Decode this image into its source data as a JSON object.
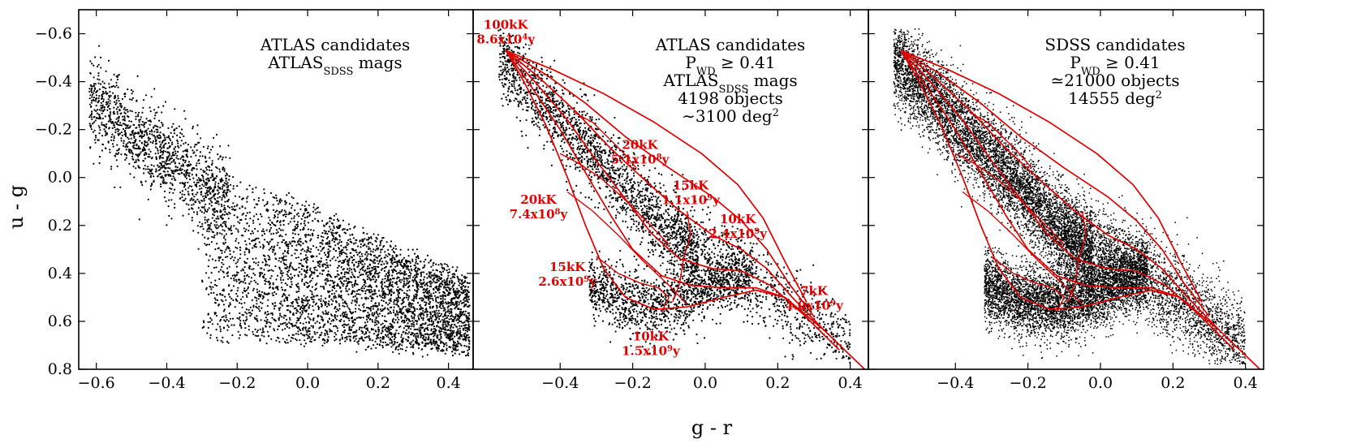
{
  "figure": {
    "xlabel": "g - r",
    "ylabel": "u - g",
    "colors": {
      "points": "#000000",
      "models": "#e00000",
      "background": "#ffffff"
    }
  },
  "chart_data": [
    {
      "type": "scatter",
      "panel": "left",
      "xlim": [
        -0.65,
        0.47
      ],
      "ylim": [
        0.8,
        -0.7
      ],
      "y_inverted": true,
      "x_ticks": [
        -0.6,
        -0.4,
        -0.2,
        0.0,
        0.2,
        0.4
      ],
      "x_tick_labels": [
        "−0.6",
        "−0.4",
        "−0.2",
        "0.0",
        "0.2",
        "0.4"
      ],
      "y_ticks": [
        -0.6,
        -0.4,
        -0.2,
        0.0,
        0.2,
        0.4,
        0.6,
        0.8
      ],
      "y_tick_labels": [
        "−0.6",
        "−0.4",
        "−0.2",
        "0.0",
        "0.2",
        "0.4",
        "0.6",
        "0.8"
      ],
      "text_lines": [
        {
          "text": "ATLAS candidates"
        },
        {
          "text": "ATLAS",
          "sub": "SDSS",
          "after": " mags"
        }
      ],
      "point_count_drawn": 5200,
      "density_regions": [
        {
          "x": [
            -0.62,
            -0.25
          ],
          "y_center": "1.1*x+0.36",
          "spread": 0.09,
          "weight": 0.25
        },
        {
          "x": [
            -0.3,
            0.46
          ],
          "y_upper": "-0.05+0.55*(x+0.3)",
          "y_lower": "0.66+0.08*(x+0.3)",
          "weight": 0.75
        }
      ]
    },
    {
      "type": "scatter",
      "panel": "middle",
      "xlim": [
        -0.64,
        0.45
      ],
      "ylim": [
        0.8,
        -0.7
      ],
      "y_inverted": true,
      "x_ticks": [
        -0.4,
        -0.2,
        0.0,
        0.2,
        0.4
      ],
      "x_tick_labels": [
        "−0.4",
        "−0.2",
        "0.0",
        "0.2",
        "0.4"
      ],
      "text_lines": [
        {
          "text": "ATLAS candidates"
        },
        {
          "text": "P",
          "sub": "WD",
          "after": " ≥ 0.41"
        },
        {
          "text": "ATLAS",
          "sub": "SDSS",
          "after": " mags"
        },
        {
          "text": "4198 objects"
        },
        {
          "text": "∼3100 deg",
          "sup": "2"
        }
      ],
      "annotations": [
        {
          "line1": "100kK",
          "line2": "8.6x10",
          "sup": "4",
          "tail": "y",
          "x": -0.55,
          "y": -0.62
        },
        {
          "line1": "20kK",
          "line2": "5.1x10",
          "sup": "8",
          "tail": "y",
          "x": -0.18,
          "y": -0.12
        },
        {
          "line1": "15kK",
          "line2": "1.1x10",
          "sup": "9",
          "tail": "y",
          "x": -0.04,
          "y": 0.05
        },
        {
          "line1": "20kK",
          "line2": "7.4x10",
          "sup": "8",
          "tail": "y",
          "x": -0.46,
          "y": 0.11
        },
        {
          "line1": "10kK",
          "line2": "2.4x10",
          "sup": "9",
          "tail": "y",
          "x": 0.09,
          "y": 0.19
        },
        {
          "line1": "15kK",
          "line2": "2.6x10",
          "sup": "9",
          "tail": "y",
          "x": -0.38,
          "y": 0.39
        },
        {
          "line1": "7kK",
          "line2": "4.0x10",
          "sup": "9",
          "tail": "y",
          "x": 0.3,
          "y": 0.49
        },
        {
          "line1": "10kK",
          "line2": "1.5x10",
          "sup": "9",
          "tail": "y",
          "x": -0.15,
          "y": 0.68
        }
      ],
      "point_count_drawn": 4198
    },
    {
      "type": "scatter",
      "panel": "right",
      "xlim": [
        -0.64,
        0.45
      ],
      "ylim": [
        0.8,
        -0.7
      ],
      "y_inverted": true,
      "x_ticks": [
        -0.4,
        -0.2,
        0.0,
        0.2,
        0.4
      ],
      "x_tick_labels": [
        "−0.4",
        "−0.2",
        "0.0",
        "0.2",
        "0.4"
      ],
      "text_lines": [
        {
          "text": "SDSS candidates"
        },
        {
          "text": "P",
          "sub": "WD",
          "after": " ≥ 0.41"
        },
        {
          "text": "≃21000 objects"
        },
        {
          "text": "14555 deg",
          "sup": "2"
        }
      ],
      "point_count_drawn": 14000
    }
  ],
  "model_tracks": {
    "cooling_tracks": [
      [
        [
          -0.55,
          -0.53
        ],
        [
          -0.48,
          -0.38
        ],
        [
          -0.4,
          -0.2
        ],
        [
          -0.33,
          -0.02
        ],
        [
          -0.26,
          0.16
        ],
        [
          -0.2,
          0.3
        ],
        [
          -0.12,
          0.41
        ],
        [
          -0.04,
          0.45
        ],
        [
          0.05,
          0.46
        ],
        [
          0.14,
          0.46
        ],
        [
          0.22,
          0.5
        ],
        [
          0.33,
          0.64
        ],
        [
          0.44,
          0.8
        ]
      ],
      [
        [
          -0.55,
          -0.53
        ],
        [
          -0.47,
          -0.4
        ],
        [
          -0.38,
          -0.24
        ],
        [
          -0.3,
          -0.07
        ],
        [
          -0.22,
          0.09
        ],
        [
          -0.15,
          0.23
        ],
        [
          -0.07,
          0.34
        ],
        [
          0.02,
          0.38
        ],
        [
          0.1,
          0.39
        ],
        [
          0.18,
          0.45
        ],
        [
          0.27,
          0.57
        ],
        [
          0.37,
          0.72
        ]
      ],
      [
        [
          -0.55,
          -0.53
        ],
        [
          -0.46,
          -0.42
        ],
        [
          -0.36,
          -0.28
        ],
        [
          -0.26,
          -0.12
        ],
        [
          -0.16,
          0.02
        ],
        [
          -0.07,
          0.14
        ],
        [
          0.02,
          0.24
        ],
        [
          0.1,
          0.3
        ],
        [
          0.17,
          0.38
        ],
        [
          0.24,
          0.5
        ],
        [
          0.33,
          0.64
        ]
      ],
      [
        [
          -0.55,
          -0.53
        ],
        [
          -0.44,
          -0.43
        ],
        [
          -0.33,
          -0.31
        ],
        [
          -0.22,
          -0.17
        ],
        [
          -0.1,
          -0.04
        ],
        [
          0.02,
          0.08
        ],
        [
          0.1,
          0.18
        ],
        [
          0.17,
          0.3
        ],
        [
          0.23,
          0.44
        ],
        [
          0.3,
          0.58
        ]
      ],
      [
        [
          -0.55,
          -0.53
        ],
        [
          -0.42,
          -0.45
        ],
        [
          -0.28,
          -0.35
        ],
        [
          -0.14,
          -0.23
        ],
        [
          -0.01,
          -0.1
        ],
        [
          0.09,
          0.03
        ],
        [
          0.16,
          0.17
        ],
        [
          0.22,
          0.35
        ],
        [
          0.28,
          0.52
        ]
      ],
      [
        [
          -0.55,
          -0.53
        ],
        [
          -0.5,
          -0.4
        ],
        [
          -0.44,
          -0.22
        ],
        [
          -0.38,
          0.0
        ],
        [
          -0.33,
          0.2
        ],
        [
          -0.28,
          0.38
        ],
        [
          -0.22,
          0.5
        ],
        [
          -0.14,
          0.55
        ],
        [
          -0.05,
          0.54
        ],
        [
          0.05,
          0.5
        ],
        [
          0.14,
          0.47
        ],
        [
          0.22,
          0.5
        ]
      ]
    ],
    "isochrones": [
      [
        [
          -0.36,
          -0.27
        ],
        [
          -0.31,
          -0.23
        ],
        [
          -0.27,
          -0.17
        ],
        [
          -0.23,
          -0.11
        ],
        [
          -0.19,
          -0.04
        ]
      ],
      [
        [
          -0.4,
          -0.1
        ],
        [
          -0.35,
          -0.06
        ],
        [
          -0.29,
          0.0
        ],
        [
          -0.23,
          0.08
        ],
        [
          -0.17,
          0.17
        ],
        [
          -0.1,
          0.28
        ]
      ],
      [
        [
          -0.38,
          0.06
        ],
        [
          -0.31,
          0.14
        ],
        [
          -0.24,
          0.24
        ],
        [
          -0.17,
          0.35
        ],
        [
          -0.1,
          0.45
        ],
        [
          -0.05,
          0.53
        ]
      ],
      [
        [
          -0.3,
          0.33
        ],
        [
          -0.24,
          0.4
        ],
        [
          -0.18,
          0.44
        ],
        [
          -0.13,
          0.46
        ],
        [
          -0.1,
          0.5
        ],
        [
          -0.12,
          0.56
        ]
      ],
      [
        [
          -0.05,
          0.14
        ],
        [
          -0.04,
          0.24
        ],
        [
          -0.06,
          0.34
        ],
        [
          -0.07,
          0.44
        ],
        [
          -0.09,
          0.52
        ]
      ]
    ]
  }
}
